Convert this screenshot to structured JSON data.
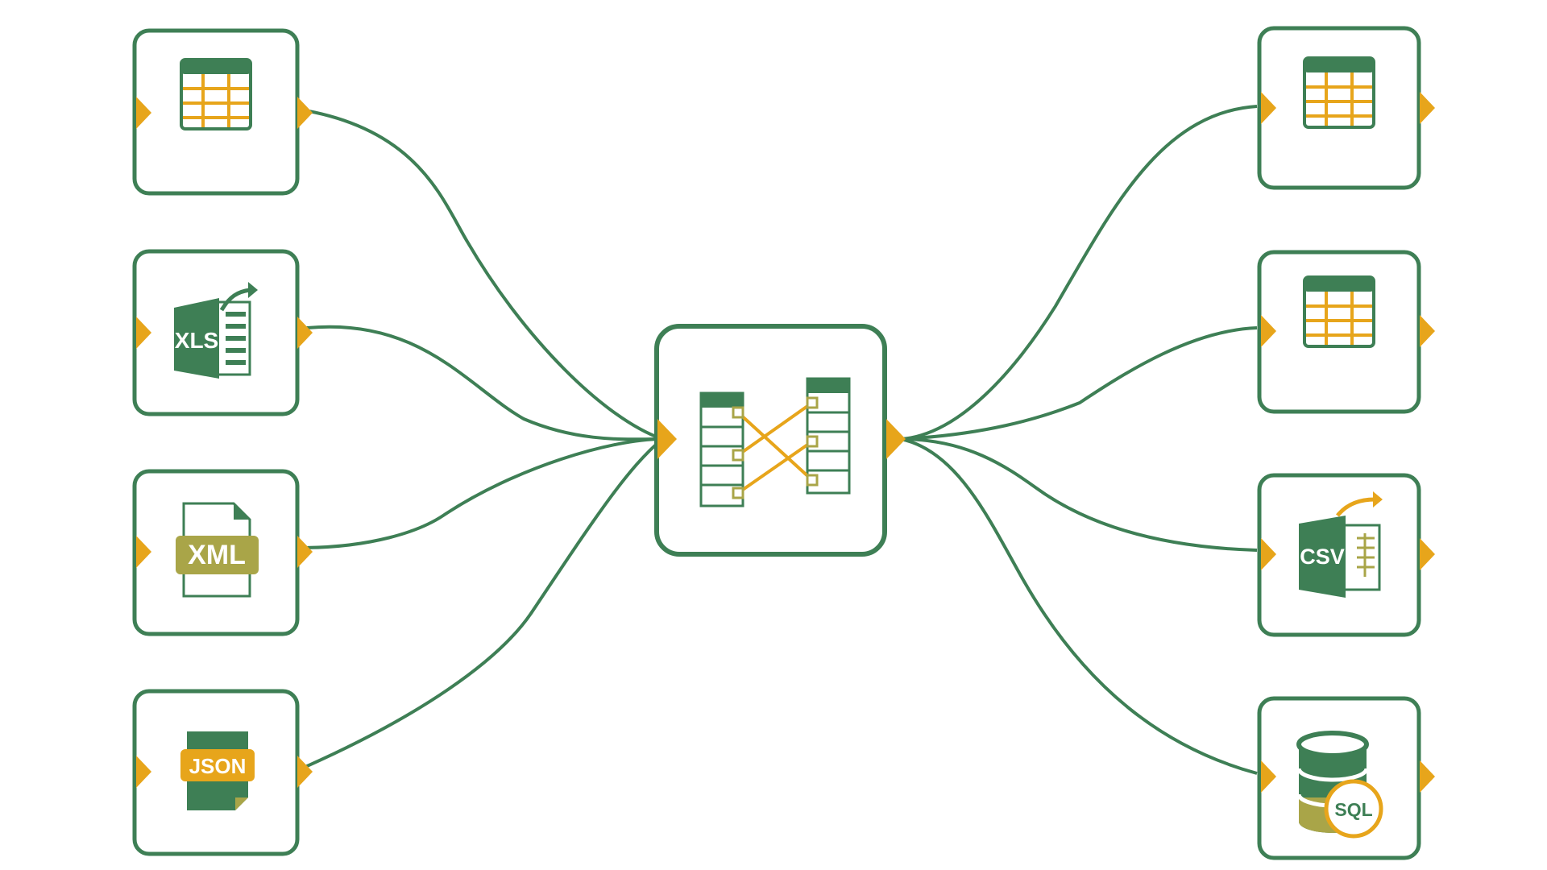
{
  "colors": {
    "node_border": "#3e7f55",
    "connector": "#3e7f55",
    "port": "#e7a51b",
    "icon_green": "#3e7f55",
    "icon_gold": "#e7a51b",
    "icon_olive": "#a9a548"
  },
  "sources": [
    {
      "id": "src-table",
      "icon": "table-icon"
    },
    {
      "id": "src-xls",
      "icon": "xls-export-icon",
      "text": "XLS"
    },
    {
      "id": "src-xml",
      "icon": "xml-file-icon",
      "text": "XML"
    },
    {
      "id": "src-json",
      "icon": "json-file-icon",
      "text": "JSON"
    }
  ],
  "mapper": {
    "id": "mapper",
    "icon": "data-mapping-icon"
  },
  "targets": [
    {
      "id": "tgt-table-1",
      "icon": "table-icon"
    },
    {
      "id": "tgt-table-2",
      "icon": "table-icon"
    },
    {
      "id": "tgt-csv",
      "icon": "csv-export-icon",
      "text": "CSV"
    },
    {
      "id": "tgt-sql",
      "icon": "sql-database-icon",
      "text": "SQL"
    }
  ]
}
